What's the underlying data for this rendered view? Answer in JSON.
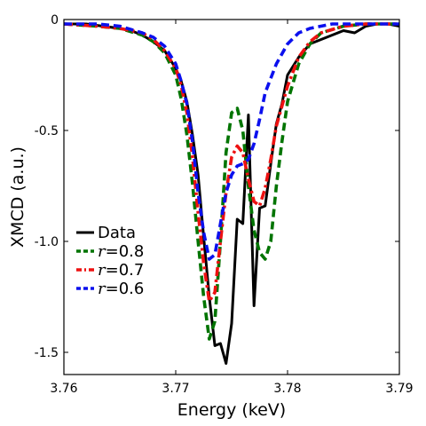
{
  "chart_data": {
    "type": "line",
    "title": "",
    "xlabel": "Energy (keV)",
    "ylabel": "XMCD (a.u.)",
    "xlim": [
      3.76,
      3.79
    ],
    "ylim": [
      -1.6,
      0.0
    ],
    "x_ticks": [
      3.76,
      3.77,
      3.78,
      3.79
    ],
    "x_tick_labels": [
      "3.76",
      "3.77",
      "3.78",
      "3.79"
    ],
    "y_ticks": [
      0,
      -0.5,
      -1.0,
      -1.5
    ],
    "y_tick_labels": [
      "0",
      "-0.5",
      "-1.0",
      "-1.5"
    ],
    "grid": false,
    "legend_position": "lower-left",
    "series": [
      {
        "name": "Data",
        "legend_prefix": "",
        "legend_value": "Data",
        "color": "#000000",
        "style": "solid",
        "points": [
          [
            3.76,
            -0.02
          ],
          [
            3.762,
            -0.02
          ],
          [
            3.7635,
            -0.03
          ],
          [
            3.765,
            -0.04
          ],
          [
            3.766,
            -0.05
          ],
          [
            3.767,
            -0.07
          ],
          [
            3.768,
            -0.1
          ],
          [
            3.769,
            -0.14
          ],
          [
            3.77,
            -0.22
          ],
          [
            3.7705,
            -0.28
          ],
          [
            3.771,
            -0.37
          ],
          [
            3.7715,
            -0.52
          ],
          [
            3.772,
            -0.7
          ],
          [
            3.7725,
            -0.98
          ],
          [
            3.773,
            -1.25
          ],
          [
            3.7735,
            -1.47
          ],
          [
            3.774,
            -1.46
          ],
          [
            3.7745,
            -1.55
          ],
          [
            3.775,
            -1.37
          ],
          [
            3.7755,
            -0.9
          ],
          [
            3.776,
            -0.92
          ],
          [
            3.7765,
            -0.43
          ],
          [
            3.777,
            -1.29
          ],
          [
            3.7775,
            -0.85
          ],
          [
            3.778,
            -0.84
          ],
          [
            3.7785,
            -0.65
          ],
          [
            3.779,
            -0.47
          ],
          [
            3.7795,
            -0.38
          ],
          [
            3.78,
            -0.25
          ],
          [
            3.781,
            -0.17
          ],
          [
            3.782,
            -0.11
          ],
          [
            3.783,
            -0.09
          ],
          [
            3.784,
            -0.07
          ],
          [
            3.785,
            -0.05
          ],
          [
            3.786,
            -0.06
          ],
          [
            3.787,
            -0.03
          ],
          [
            3.788,
            -0.02
          ],
          [
            3.789,
            -0.02
          ],
          [
            3.79,
            -0.03
          ]
        ]
      },
      {
        "name": "r=0.8",
        "legend_prefix": "r",
        "legend_value": "=0.8",
        "color": "#007400",
        "style": "dashed",
        "points": [
          [
            3.76,
            -0.02
          ],
          [
            3.763,
            -0.03
          ],
          [
            3.765,
            -0.04
          ],
          [
            3.767,
            -0.07
          ],
          [
            3.768,
            -0.1
          ],
          [
            3.769,
            -0.15
          ],
          [
            3.77,
            -0.25
          ],
          [
            3.7705,
            -0.36
          ],
          [
            3.771,
            -0.52
          ],
          [
            3.7715,
            -0.74
          ],
          [
            3.772,
            -1.0
          ],
          [
            3.7725,
            -1.25
          ],
          [
            3.773,
            -1.44
          ],
          [
            3.7735,
            -1.36
          ],
          [
            3.774,
            -1.0
          ],
          [
            3.7745,
            -0.6
          ],
          [
            3.775,
            -0.42
          ],
          [
            3.7755,
            -0.4
          ],
          [
            3.776,
            -0.5
          ],
          [
            3.7765,
            -0.75
          ],
          [
            3.777,
            -0.95
          ],
          [
            3.7775,
            -1.05
          ],
          [
            3.778,
            -1.08
          ],
          [
            3.7785,
            -1.0
          ],
          [
            3.779,
            -0.75
          ],
          [
            3.7795,
            -0.55
          ],
          [
            3.78,
            -0.37
          ],
          [
            3.781,
            -0.2
          ],
          [
            3.782,
            -0.11
          ],
          [
            3.783,
            -0.06
          ],
          [
            3.785,
            -0.03
          ],
          [
            3.787,
            -0.02
          ],
          [
            3.79,
            -0.02
          ]
        ]
      },
      {
        "name": "r=0.7",
        "legend_prefix": "r",
        "legend_value": "=0.7",
        "color": "#ee1111",
        "style": "dashdot",
        "points": [
          [
            3.76,
            -0.02
          ],
          [
            3.763,
            -0.03
          ],
          [
            3.765,
            -0.04
          ],
          [
            3.767,
            -0.06
          ],
          [
            3.768,
            -0.09
          ],
          [
            3.769,
            -0.14
          ],
          [
            3.77,
            -0.22
          ],
          [
            3.7705,
            -0.3
          ],
          [
            3.771,
            -0.42
          ],
          [
            3.7715,
            -0.62
          ],
          [
            3.772,
            -0.87
          ],
          [
            3.7725,
            -1.1
          ],
          [
            3.773,
            -1.27
          ],
          [
            3.7735,
            -1.23
          ],
          [
            3.774,
            -1.0
          ],
          [
            3.7745,
            -0.78
          ],
          [
            3.775,
            -0.62
          ],
          [
            3.7755,
            -0.57
          ],
          [
            3.776,
            -0.6
          ],
          [
            3.7765,
            -0.72
          ],
          [
            3.777,
            -0.82
          ],
          [
            3.7775,
            -0.84
          ],
          [
            3.778,
            -0.76
          ],
          [
            3.7785,
            -0.63
          ],
          [
            3.779,
            -0.48
          ],
          [
            3.78,
            -0.3
          ],
          [
            3.781,
            -0.17
          ],
          [
            3.782,
            -0.1
          ],
          [
            3.783,
            -0.06
          ],
          [
            3.785,
            -0.03
          ],
          [
            3.787,
            -0.02
          ],
          [
            3.79,
            -0.02
          ]
        ]
      },
      {
        "name": "r=0.6",
        "legend_prefix": "r",
        "legend_value": "=0.6",
        "color": "#0b10ee",
        "style": "dashed",
        "points": [
          [
            3.76,
            -0.02
          ],
          [
            3.763,
            -0.02
          ],
          [
            3.765,
            -0.03
          ],
          [
            3.767,
            -0.06
          ],
          [
            3.768,
            -0.08
          ],
          [
            3.769,
            -0.12
          ],
          [
            3.77,
            -0.2
          ],
          [
            3.7705,
            -0.28
          ],
          [
            3.771,
            -0.38
          ],
          [
            3.7715,
            -0.55
          ],
          [
            3.772,
            -0.78
          ],
          [
            3.7725,
            -0.96
          ],
          [
            3.773,
            -1.08
          ],
          [
            3.7735,
            -1.06
          ],
          [
            3.774,
            -0.92
          ],
          [
            3.7745,
            -0.78
          ],
          [
            3.775,
            -0.7
          ],
          [
            3.7755,
            -0.66
          ],
          [
            3.776,
            -0.65
          ],
          [
            3.7765,
            -0.63
          ],
          [
            3.777,
            -0.56
          ],
          [
            3.7775,
            -0.45
          ],
          [
            3.778,
            -0.33
          ],
          [
            3.779,
            -0.2
          ],
          [
            3.78,
            -0.11
          ],
          [
            3.781,
            -0.06
          ],
          [
            3.782,
            -0.04
          ],
          [
            3.784,
            -0.02
          ],
          [
            3.787,
            -0.02
          ],
          [
            3.79,
            -0.02
          ]
        ]
      }
    ]
  }
}
